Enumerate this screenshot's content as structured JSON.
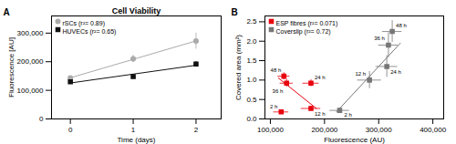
{
  "chart_data": [
    {
      "type": "scatter",
      "title": "Cell Viability",
      "annotation": "A",
      "xlabel": "Time (days)",
      "ylabel": "Fluorescence [AU]",
      "xlim": [
        -0.3,
        2.4
      ],
      "xticks": [
        0,
        1,
        2
      ],
      "ylim": [
        0,
        360000
      ],
      "yticks": [
        0,
        {
          "value": 100000,
          "label": "100,000"
        },
        {
          "value": 200000,
          "label": "200,000"
        },
        {
          "value": 300000,
          "label": "300,000"
        }
      ],
      "grid": false,
      "legend": "upper left",
      "series": [
        {
          "name": "rSCs (r²= 0.89)",
          "color": "#aaaaaa",
          "marker": "circle",
          "x": [
            0,
            1,
            2
          ],
          "values": [
            143000,
            210000,
            272000
          ],
          "yerr": [
            7000,
            13000,
            28000
          ],
          "fit_x": [
            0,
            2
          ],
          "fit_y": [
            143833.33333333334,
            272833.3333333333
          ]
        },
        {
          "name": "HUVECs (r²= 0.65)",
          "color": "#111111",
          "marker": "square",
          "x": [
            0,
            1,
            2
          ],
          "values": [
            130000,
            148000,
            192000
          ],
          "yerr": [
            5000,
            8000,
            9000
          ],
          "fit_x": [
            0,
            2
          ],
          "fit_y": [
            125666.66666666667,
            187666.66666666666
          ]
        }
      ]
    },
    {
      "type": "scatter",
      "annotation": "B",
      "xlabel": "Fluorescence (AU)",
      "ylabel": "Covered area (mm²)",
      "xlim": [
        90000,
        420000
      ],
      "xticks": [
        {
          "value": 100000,
          "label": "100,000"
        },
        {
          "value": 200000,
          "label": "200,000"
        },
        {
          "value": 300000,
          "label": "300,000"
        },
        {
          "value": 400000,
          "label": "400,000"
        }
      ],
      "ylim": [
        0,
        2.65
      ],
      "yticks": [
        {
          "value": 0,
          "label": "0.0"
        },
        0.5,
        {
          "value": 1,
          "label": "1.0"
        },
        1.5,
        {
          "value": 2,
          "label": "2.0"
        },
        2.5
      ],
      "grid": false,
      "legend": "upper left",
      "series": [
        {
          "name": "ESP fibres (r²= 0.071)",
          "color": "#e8000d",
          "marker": "square",
          "x": [
            120000,
            175000,
            130000,
            125000,
            175000
          ],
          "values": [
            0.18,
            0.27,
            0.92,
            1.1,
            0.92
          ],
          "xerr": [
            14000,
            18000,
            12000,
            11000,
            15000
          ],
          "yerr": [
            0.05,
            0.06,
            0.1,
            0.09,
            0.09
          ],
          "point_labels": [
            "2 h",
            "12 h",
            "36 h",
            "48 h",
            "24 h"
          ],
          "fit_x": [
            115000,
            185000
          ],
          "fit_y": [
            1.05,
            0.27
          ]
        },
        {
          "name": "Coverslip (r²= 0.72)",
          "color": "#777777",
          "marker": "square",
          "x": [
            228000,
            283000,
            315000,
            318000,
            325000
          ],
          "values": [
            0.22,
            1.0,
            1.35,
            1.9,
            2.25
          ],
          "xerr": [
            18000,
            22000,
            20000,
            18000,
            18000
          ],
          "yerr": [
            0.06,
            0.22,
            0.28,
            0.32,
            0.28
          ],
          "point_labels": [
            "2 h",
            "12 h",
            "24 h",
            "36 h",
            "48 h"
          ],
          "fit_x": [
            222000,
            340000
          ],
          "fit_y": [
            0.18,
            1.95
          ]
        }
      ]
    }
  ]
}
